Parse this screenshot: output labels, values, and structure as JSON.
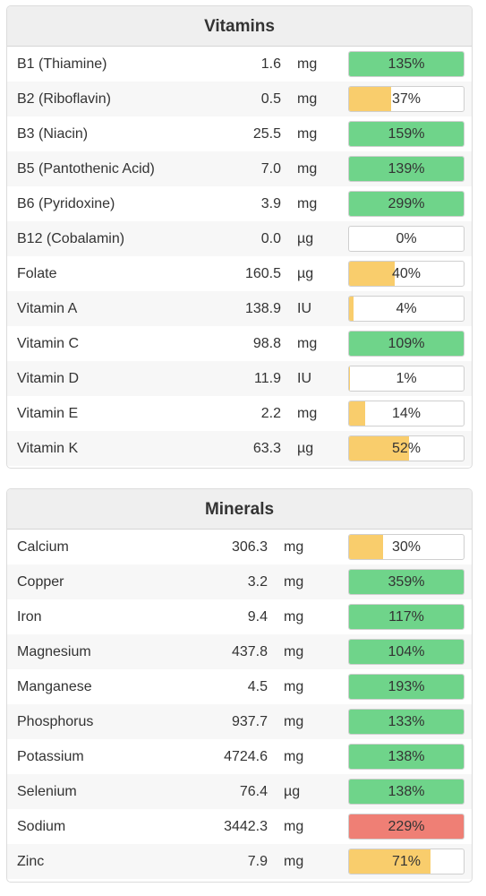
{
  "colors": {
    "good": "#6fd48a",
    "partial": "#f9cd6c",
    "excess": "#ef7f75"
  },
  "vitamins": {
    "title": "Vitamins",
    "rows": [
      {
        "name": "B1 (Thiamine)",
        "amount": "1.6",
        "unit": "mg",
        "pct": "135%",
        "percent": 135,
        "status": "good"
      },
      {
        "name": "B2 (Riboflavin)",
        "amount": "0.5",
        "unit": "mg",
        "pct": "37%",
        "percent": 37,
        "status": "partial"
      },
      {
        "name": "B3 (Niacin)",
        "amount": "25.5",
        "unit": "mg",
        "pct": "159%",
        "percent": 159,
        "status": "good"
      },
      {
        "name": "B5 (Pantothenic Acid)",
        "amount": "7.0",
        "unit": "mg",
        "pct": "139%",
        "percent": 139,
        "status": "good"
      },
      {
        "name": "B6 (Pyridoxine)",
        "amount": "3.9",
        "unit": "mg",
        "pct": "299%",
        "percent": 299,
        "status": "good"
      },
      {
        "name": "B12 (Cobalamin)",
        "amount": "0.0",
        "unit": "µg",
        "pct": "0%",
        "percent": 0,
        "status": "partial"
      },
      {
        "name": "Folate",
        "amount": "160.5",
        "unit": "µg",
        "pct": "40%",
        "percent": 40,
        "status": "partial"
      },
      {
        "name": "Vitamin A",
        "amount": "138.9",
        "unit": "IU",
        "pct": "4%",
        "percent": 4,
        "status": "partial"
      },
      {
        "name": "Vitamin C",
        "amount": "98.8",
        "unit": "mg",
        "pct": "109%",
        "percent": 109,
        "status": "good"
      },
      {
        "name": "Vitamin D",
        "amount": "11.9",
        "unit": "IU",
        "pct": "1%",
        "percent": 1,
        "status": "partial"
      },
      {
        "name": "Vitamin E",
        "amount": "2.2",
        "unit": "mg",
        "pct": "14%",
        "percent": 14,
        "status": "partial"
      },
      {
        "name": "Vitamin K",
        "amount": "63.3",
        "unit": "µg",
        "pct": "52%",
        "percent": 52,
        "status": "partial"
      }
    ]
  },
  "minerals": {
    "title": "Minerals",
    "rows": [
      {
        "name": "Calcium",
        "amount": "306.3",
        "unit": "mg",
        "pct": "30%",
        "percent": 30,
        "status": "partial"
      },
      {
        "name": "Copper",
        "amount": "3.2",
        "unit": "mg",
        "pct": "359%",
        "percent": 359,
        "status": "good"
      },
      {
        "name": "Iron",
        "amount": "9.4",
        "unit": "mg",
        "pct": "117%",
        "percent": 117,
        "status": "good"
      },
      {
        "name": "Magnesium",
        "amount": "437.8",
        "unit": "mg",
        "pct": "104%",
        "percent": 104,
        "status": "good"
      },
      {
        "name": "Manganese",
        "amount": "4.5",
        "unit": "mg",
        "pct": "193%",
        "percent": 193,
        "status": "good"
      },
      {
        "name": "Phosphorus",
        "amount": "937.7",
        "unit": "mg",
        "pct": "133%",
        "percent": 133,
        "status": "good"
      },
      {
        "name": "Potassium",
        "amount": "4724.6",
        "unit": "mg",
        "pct": "138%",
        "percent": 138,
        "status": "good"
      },
      {
        "name": "Selenium",
        "amount": "76.4",
        "unit": "µg",
        "pct": "138%",
        "percent": 138,
        "status": "good"
      },
      {
        "name": "Sodium",
        "amount": "3442.3",
        "unit": "mg",
        "pct": "229%",
        "percent": 229,
        "status": "excess"
      },
      {
        "name": "Zinc",
        "amount": "7.9",
        "unit": "mg",
        "pct": "71%",
        "percent": 71,
        "status": "partial"
      }
    ]
  }
}
